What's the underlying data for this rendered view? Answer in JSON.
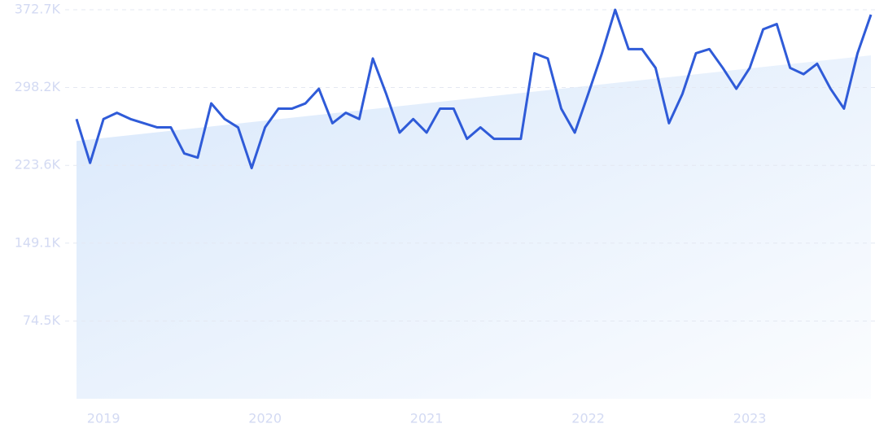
{
  "chart_data": {
    "type": "line",
    "x": [
      2018.833,
      2018.917,
      2019.0,
      2019.083,
      2019.167,
      2019.25,
      2019.333,
      2019.417,
      2019.5,
      2019.583,
      2019.667,
      2019.75,
      2019.833,
      2019.917,
      2020.0,
      2020.083,
      2020.167,
      2020.25,
      2020.333,
      2020.417,
      2020.5,
      2020.583,
      2020.667,
      2020.75,
      2020.833,
      2020.917,
      2021.0,
      2021.083,
      2021.167,
      2021.25,
      2021.333,
      2021.417,
      2021.5,
      2021.583,
      2021.667,
      2021.75,
      2021.833,
      2021.917,
      2022.0,
      2022.083,
      2022.167,
      2022.25,
      2022.333,
      2022.417,
      2022.5,
      2022.583,
      2022.667,
      2022.75,
      2022.833,
      2022.917,
      2023.0,
      2023.083,
      2023.167,
      2023.25,
      2023.333,
      2023.417,
      2023.5,
      2023.583,
      2023.667,
      2023.75
    ],
    "series": [
      {
        "color": "#2f5bd8",
        "values": [
          268,
          226,
          268,
          274,
          268,
          264,
          260,
          260,
          235,
          231,
          283,
          268,
          260,
          221,
          260,
          278,
          278,
          283,
          297,
          264,
          274,
          268,
          326,
          292,
          255,
          268,
          255,
          278,
          278,
          249,
          260,
          249,
          249,
          249,
          331,
          326,
          278,
          255,
          292,
          330,
          372.7,
          335,
          335,
          317,
          264,
          292,
          331,
          335,
          317,
          297,
          317,
          354,
          359,
          317,
          311,
          321,
          297,
          278,
          331,
          368
        ]
      }
    ],
    "trend": {
      "color": "#d9e8fb",
      "values": [
        247,
        329
      ]
    },
    "xlim": [
      2018.833,
      2023.75
    ],
    "xticks": [
      2019,
      2020,
      2021,
      2022,
      2023
    ],
    "ylim": [
      0,
      372.7
    ],
    "yticks": [
      {
        "value": 74.5,
        "label": "74.5K"
      },
      {
        "value": 149.1,
        "label": "149.1K"
      },
      {
        "value": 223.6,
        "label": "223.6K"
      },
      {
        "value": 298.2,
        "label": "298.2K"
      },
      {
        "value": 372.7,
        "label": "372.7K"
      }
    ],
    "grid": true
  }
}
